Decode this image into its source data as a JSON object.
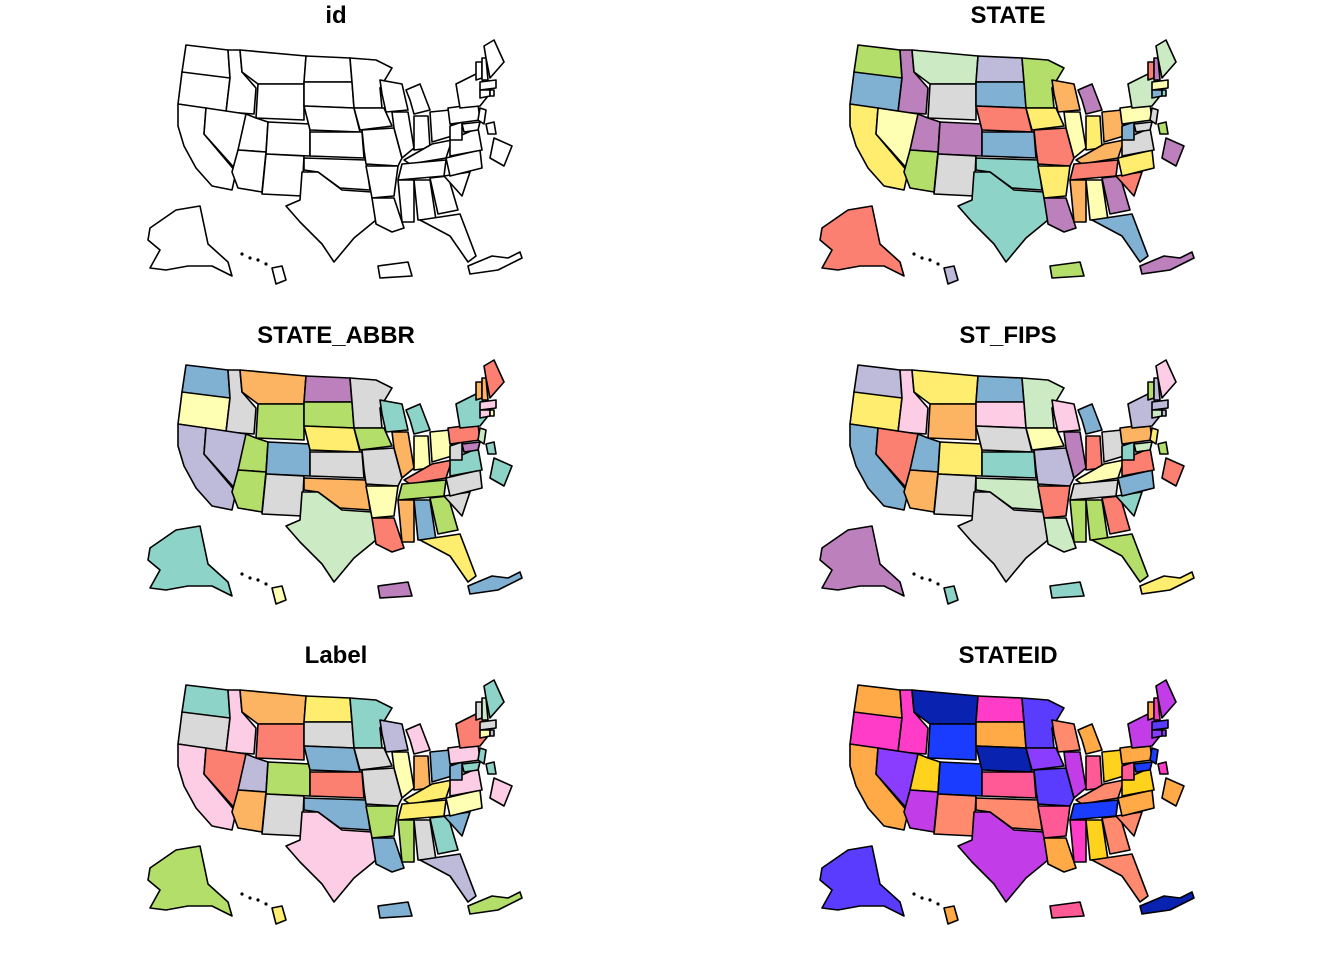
{
  "panels": [
    {
      "title": "id",
      "fill_mode": "single",
      "fill": "#ffffff"
    },
    {
      "title": "STATE",
      "fill_mode": "palette",
      "palette": [
        "#8dd3c7",
        "#ffffb3",
        "#bebada",
        "#fb8072",
        "#80b1d3",
        "#fdb462",
        "#b3de69",
        "#fccde5",
        "#d9d9d9",
        "#bc80bd",
        "#ccebc5",
        "#ffed6f"
      ],
      "seed": 1
    },
    {
      "title": "STATE_ABBR",
      "fill_mode": "palette",
      "palette": [
        "#8dd3c7",
        "#ffffb3",
        "#bebada",
        "#fb8072",
        "#80b1d3",
        "#fdb462",
        "#b3de69",
        "#fccde5",
        "#d9d9d9",
        "#bc80bd",
        "#ccebc5",
        "#ffed6f"
      ],
      "seed": 2
    },
    {
      "title": "ST_FIPS",
      "fill_mode": "palette",
      "palette": [
        "#8dd3c7",
        "#ffffb3",
        "#bebada",
        "#fb8072",
        "#80b1d3",
        "#fdb462",
        "#b3de69",
        "#fccde5",
        "#d9d9d9",
        "#bc80bd",
        "#ccebc5",
        "#ffed6f"
      ],
      "seed": 3
    },
    {
      "title": "Label",
      "fill_mode": "palette",
      "palette": [
        "#8dd3c7",
        "#ffffb3",
        "#bebada",
        "#fb8072",
        "#80b1d3",
        "#fdb462",
        "#b3de69",
        "#fccde5",
        "#d9d9d9",
        "#bc80bd",
        "#ccebc5",
        "#ffed6f"
      ],
      "seed": 4
    },
    {
      "title": "STATEID",
      "fill_mode": "palette",
      "palette": [
        "#0a22b0",
        "#1a3cff",
        "#5a3cff",
        "#8a3cff",
        "#c23ce8",
        "#ff3cc8",
        "#ff5a96",
        "#ff8a6e",
        "#ffaa46",
        "#ffd21e"
      ],
      "seed": 5
    }
  ]
}
